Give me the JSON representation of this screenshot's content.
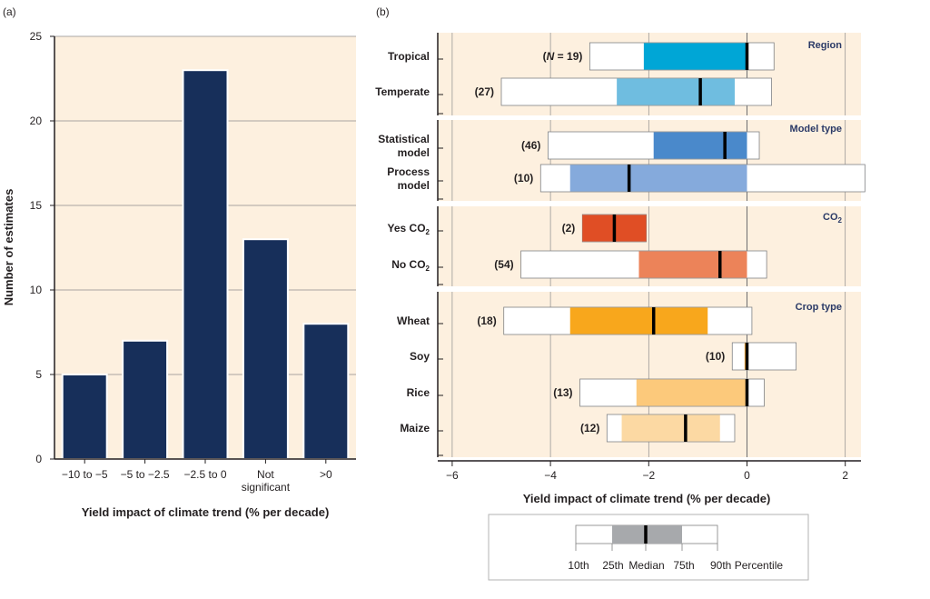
{
  "panel_a": {
    "label": "(a)",
    "ylabel": "Number of estimates",
    "xlabel": "Yield impact of climate trend (% per decade)"
  },
  "panel_b": {
    "label": "(b)",
    "xlabel": "Yield impact of climate trend  (% per decade)",
    "n_prefix": "N",
    "n_suffix": " = 19)"
  },
  "legend": {
    "items": [
      "10th",
      "25th",
      "Median",
      "75th",
      "90th Percentile"
    ]
  },
  "colors": {
    "panel_bg": "#fdf0df",
    "bar_a": "#172f5a",
    "grid": "#8c8c8c",
    "legend_box": "#a7a9ac"
  },
  "chart_data": [
    {
      "type": "bar",
      "panel": "(a)",
      "categories": [
        "−10 to −5",
        "−5 to −2.5",
        "−2.5 to 0",
        "Not significant",
        ">0"
      ],
      "category_lines": [
        [
          "−10 to −5"
        ],
        [
          "−5 to −2.5"
        ],
        [
          "−2.5 to 0"
        ],
        [
          "Not",
          "significant"
        ],
        [
          ">0"
        ]
      ],
      "values": [
        5,
        7,
        23,
        13,
        8
      ],
      "ylabel": "Number of estimates",
      "xlabel": "Yield impact of climate trend (% per decade)",
      "ylim": [
        0,
        25
      ],
      "yticks": [
        0,
        5,
        10,
        15,
        20,
        25
      ],
      "grid": true
    },
    {
      "type": "box",
      "panel": "(b)",
      "xlabel": "Yield impact of climate trend  (% per decade)",
      "xlim": [
        -6.2,
        2.3
      ],
      "xticks": [
        -6,
        -4,
        -2,
        0,
        2
      ],
      "xtick_labels": [
        "−6",
        "−4",
        "−2",
        "0",
        "2"
      ],
      "grid": true,
      "groups": [
        {
          "title": "Region",
          "rows": [
            {
              "lines": [
                "Tropical"
              ],
              "n": "19",
              "p10": -3.2,
              "p25": -2.1,
              "median": 0.0,
              "p75": 0.0,
              "p90": 0.55,
              "color": "#00a6d6"
            },
            {
              "lines": [
                "Temperate"
              ],
              "n": "(27)",
              "p10": -5.0,
              "p25": -2.65,
              "median": -0.95,
              "p75": -0.25,
              "p90": 0.5,
              "color": "#6fbde0"
            }
          ]
        },
        {
          "title": "Model type",
          "rows": [
            {
              "lines": [
                "Statistical",
                "model"
              ],
              "n": "(46)",
              "p10": -4.05,
              "p25": -1.9,
              "median": -0.45,
              "p75": 0.0,
              "p90": 0.25,
              "color": "#4a89cb"
            },
            {
              "lines": [
                "Process",
                "model"
              ],
              "n": "(10)",
              "p10": -4.2,
              "p25": -3.6,
              "median": -2.4,
              "p75": 0.0,
              "p90": 2.4,
              "color": "#85aadc"
            }
          ]
        },
        {
          "title": "CO2",
          "title_main": "CO",
          "title_sub": "2",
          "rows": [
            {
              "lines": [
                "Yes CO"
              ],
              "sub": "2",
              "n": "(2)",
              "p10": -3.35,
              "p25": -3.35,
              "median": -2.7,
              "p75": -2.05,
              "p90": -2.05,
              "color": "#e04e25"
            },
            {
              "lines": [
                "No CO"
              ],
              "sub": "2",
              "n": "(54)",
              "p10": -4.6,
              "p25": -2.2,
              "median": -0.55,
              "p75": 0.0,
              "p90": 0.4,
              "color": "#ec8359"
            }
          ]
        },
        {
          "title": "Crop type",
          "rows": [
            {
              "lines": [
                "Wheat"
              ],
              "n": "(18)",
              "p10": -4.95,
              "p25": -3.6,
              "median": -1.9,
              "p75": -0.8,
              "p90": 0.1,
              "color": "#f8a71c"
            },
            {
              "lines": [
                "Soy"
              ],
              "n": "(10)",
              "p10": -0.3,
              "p25": -0.05,
              "median": 0.0,
              "p75": 0.0,
              "p90": 1.0,
              "color": "#fbb040"
            },
            {
              "lines": [
                "Rice"
              ],
              "n": "(13)",
              "p10": -3.4,
              "p25": -2.25,
              "median": 0.0,
              "p75": 0.0,
              "p90": 0.35,
              "color": "#fcc97b"
            },
            {
              "lines": [
                "Maize"
              ],
              "n": "(12)",
              "p10": -2.85,
              "p25": -2.55,
              "median": -1.25,
              "p75": -0.55,
              "p90": -0.25,
              "color": "#fcd9a3"
            }
          ]
        }
      ]
    }
  ]
}
